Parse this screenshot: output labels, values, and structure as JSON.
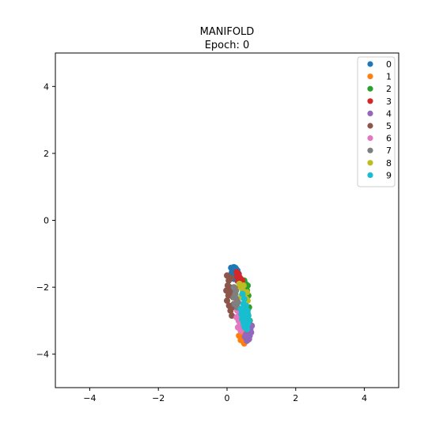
{
  "chart_data": {
    "type": "scatter",
    "title_lines": [
      "MANIFOLD",
      "Epoch: 0"
    ],
    "xlabel": "",
    "ylabel": "",
    "xlim": [
      -5,
      5
    ],
    "ylim": [
      -5,
      5
    ],
    "xticks": [
      -4,
      -2,
      0,
      2,
      4
    ],
    "yticks": [
      -4,
      -2,
      0,
      2,
      4
    ],
    "xtick_labels": [
      "−4",
      "−2",
      "0",
      "2",
      "4"
    ],
    "ytick_labels": [
      "−4",
      "−2",
      "0",
      "2",
      "4"
    ],
    "grid": false,
    "legend_position": "top-right",
    "series": [
      {
        "name": "0",
        "color": "#1f77b4",
        "points": [
          [
            0.12,
            -1.42
          ],
          [
            0.2,
            -1.4
          ],
          [
            0.26,
            -1.45
          ],
          [
            0.16,
            -1.5
          ],
          [
            0.22,
            -1.55
          ],
          [
            0.3,
            -1.5
          ],
          [
            0.18,
            -1.62
          ],
          [
            0.26,
            -1.66
          ],
          [
            0.34,
            -1.6
          ],
          [
            0.2,
            -1.75
          ],
          [
            0.3,
            -1.8
          ],
          [
            0.14,
            -1.56
          ],
          [
            0.24,
            -1.42
          ],
          [
            0.36,
            -1.7
          ]
        ]
      },
      {
        "name": "1",
        "color": "#ff7f0e",
        "points": [
          [
            0.38,
            -3.2
          ],
          [
            0.42,
            -3.35
          ],
          [
            0.35,
            -3.45
          ],
          [
            0.45,
            -3.5
          ],
          [
            0.4,
            -3.58
          ],
          [
            0.48,
            -3.62
          ],
          [
            0.5,
            -3.68
          ],
          [
            0.44,
            -3.3
          ],
          [
            0.52,
            -3.55
          ]
        ]
      },
      {
        "name": "2",
        "color": "#2ca02c",
        "points": [
          [
            0.5,
            -1.8
          ],
          [
            0.54,
            -1.9
          ],
          [
            0.6,
            -1.95
          ],
          [
            0.58,
            -2.1
          ],
          [
            0.62,
            -2.25
          ],
          [
            0.56,
            -2.4
          ],
          [
            0.64,
            -2.6
          ],
          [
            0.6,
            -2.8
          ],
          [
            0.66,
            -3.0
          ],
          [
            0.52,
            -2.0
          ]
        ]
      },
      {
        "name": "3",
        "color": "#d62728",
        "points": [
          [
            0.28,
            -1.55
          ],
          [
            0.33,
            -1.6
          ],
          [
            0.36,
            -1.7
          ],
          [
            0.4,
            -1.75
          ],
          [
            0.32,
            -1.82
          ],
          [
            0.42,
            -1.9
          ],
          [
            0.38,
            -1.98
          ],
          [
            0.3,
            -1.68
          ],
          [
            0.44,
            -1.8
          ]
        ]
      },
      {
        "name": "4",
        "color": "#9467bd",
        "points": [
          [
            0.5,
            -3.0
          ],
          [
            0.55,
            -3.1
          ],
          [
            0.6,
            -3.2
          ],
          [
            0.62,
            -3.3
          ],
          [
            0.56,
            -3.4
          ],
          [
            0.66,
            -3.45
          ],
          [
            0.7,
            -3.35
          ],
          [
            0.6,
            -3.52
          ],
          [
            0.52,
            -3.48
          ],
          [
            0.68,
            -3.25
          ],
          [
            0.64,
            -3.55
          ],
          [
            0.72,
            -3.15
          ],
          [
            0.58,
            -3.6
          ]
        ]
      },
      {
        "name": "5",
        "color": "#8c564b",
        "points": [
          [
            0.0,
            -1.65
          ],
          [
            0.05,
            -1.8
          ],
          [
            0.02,
            -1.95
          ],
          [
            -0.02,
            -2.1
          ],
          [
            0.04,
            -2.25
          ],
          [
            0.0,
            -2.4
          ],
          [
            0.06,
            -2.55
          ],
          [
            0.1,
            -2.7
          ],
          [
            0.14,
            -2.85
          ],
          [
            0.08,
            -2.0
          ],
          [
            0.12,
            -1.72
          ],
          [
            0.18,
            -2.3
          ],
          [
            0.16,
            -2.6
          ],
          [
            0.2,
            -2.5
          ],
          [
            0.1,
            -2.15
          ]
        ]
      },
      {
        "name": "6",
        "color": "#e377c2",
        "points": [
          [
            0.25,
            -2.5
          ],
          [
            0.3,
            -2.7
          ],
          [
            0.28,
            -2.9
          ],
          [
            0.34,
            -3.0
          ],
          [
            0.38,
            -3.1
          ],
          [
            0.32,
            -3.2
          ],
          [
            0.4,
            -3.3
          ],
          [
            0.36,
            -2.8
          ],
          [
            0.42,
            -3.05
          ]
        ]
      },
      {
        "name": "7",
        "color": "#7f7f7f",
        "points": [
          [
            0.2,
            -2.0
          ],
          [
            0.24,
            -2.2
          ],
          [
            0.28,
            -2.35
          ],
          [
            0.22,
            -2.5
          ],
          [
            0.3,
            -2.6
          ],
          [
            0.26,
            -2.1
          ],
          [
            0.32,
            -2.45
          ],
          [
            0.2,
            -2.3
          ]
        ]
      },
      {
        "name": "8",
        "color": "#bcbd22",
        "points": [
          [
            0.36,
            -1.9
          ],
          [
            0.4,
            -2.0
          ],
          [
            0.46,
            -2.1
          ],
          [
            0.5,
            -2.2
          ],
          [
            0.44,
            -2.3
          ],
          [
            0.56,
            -2.35
          ],
          [
            0.6,
            -2.4
          ],
          [
            0.52,
            -2.5
          ],
          [
            0.48,
            -1.95
          ],
          [
            0.58,
            -2.15
          ],
          [
            0.42,
            -2.25
          ]
        ]
      },
      {
        "name": "9",
        "color": "#17becf",
        "points": [
          [
            0.45,
            -2.2
          ],
          [
            0.5,
            -2.35
          ],
          [
            0.48,
            -2.5
          ],
          [
            0.52,
            -2.6
          ],
          [
            0.46,
            -2.7
          ],
          [
            0.54,
            -2.8
          ],
          [
            0.5,
            -2.9
          ],
          [
            0.56,
            -3.0
          ],
          [
            0.48,
            -3.05
          ],
          [
            0.6,
            -3.1
          ],
          [
            0.52,
            -3.2
          ],
          [
            0.58,
            -3.25
          ],
          [
            0.44,
            -2.95
          ],
          [
            0.62,
            -2.85
          ],
          [
            0.4,
            -2.65
          ],
          [
            0.55,
            -2.55
          ],
          [
            0.6,
            -2.7
          ],
          [
            0.42,
            -2.8
          ],
          [
            0.64,
            -3.0
          ],
          [
            0.5,
            -3.15
          ]
        ]
      }
    ]
  }
}
